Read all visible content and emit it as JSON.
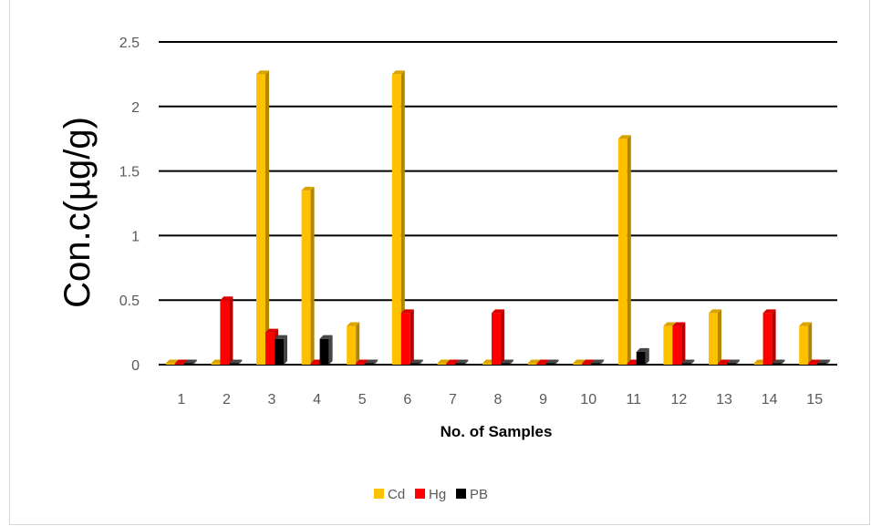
{
  "chart_data": {
    "type": "bar",
    "title": "",
    "xlabel": "No. of Samples",
    "ylabel": "Con.c(µg/g)",
    "categories": [
      "1",
      "2",
      "3",
      "4",
      "5",
      "6",
      "7",
      "8",
      "9",
      "10",
      "11",
      "12",
      "13",
      "14",
      "15"
    ],
    "ylim": [
      0,
      2.5
    ],
    "yticks": [
      "0",
      "0.5",
      "1",
      "1.5",
      "2",
      "2.5"
    ],
    "grid": true,
    "legend_position": "bottom",
    "series": [
      {
        "name": "Cd",
        "color": "#FFC000",
        "values": [
          0,
          0,
          2.25,
          1.35,
          0.3,
          2.25,
          0,
          0,
          0,
          0,
          1.75,
          0.3,
          0.4,
          0,
          0.3
        ]
      },
      {
        "name": "Hg",
        "color": "#FF0000",
        "values": [
          0,
          0.5,
          0.25,
          0,
          0,
          0.4,
          0,
          0.4,
          0,
          0,
          0,
          0.3,
          0,
          0.4,
          0
        ]
      },
      {
        "name": "PB",
        "color": "#000000",
        "values": [
          0,
          0,
          0.2,
          0.2,
          0,
          0,
          0,
          0,
          0,
          0,
          0.1,
          0,
          0,
          0,
          0
        ]
      }
    ]
  }
}
